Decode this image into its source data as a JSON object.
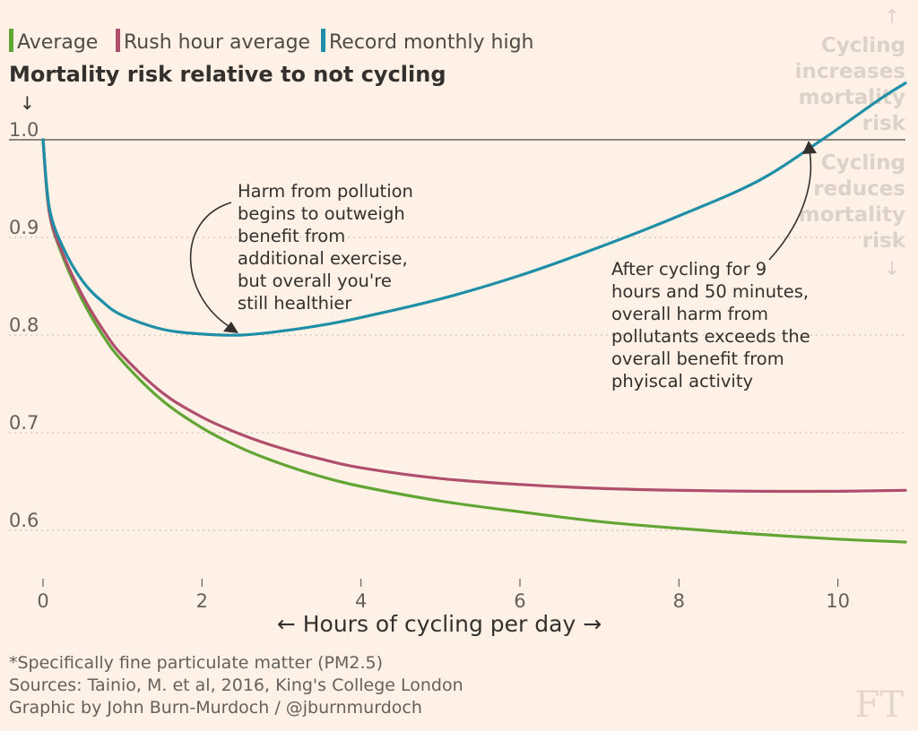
{
  "chart_data": {
    "type": "line",
    "title": "Mortality risk relative to not cycling",
    "title_arrow": "↓",
    "xlabel": "← Hours of cycling per day →",
    "xlim": [
      0,
      10.85
    ],
    "ylim": [
      0.55,
      1.0
    ],
    "y_ticks": [
      1.0,
      0.9,
      0.8,
      0.7,
      0.6
    ],
    "y_tick_labels": [
      "1.0",
      "0.9",
      "0.8",
      "0.7",
      "0.6"
    ],
    "x_ticks": [
      0,
      2,
      4,
      6,
      8,
      10
    ],
    "x_tick_labels": [
      "0",
      "2",
      "4",
      "6",
      "8",
      "10"
    ],
    "grid": true,
    "legend_position": "top-left",
    "reference_line": 1.0,
    "series": [
      {
        "name": "Average",
        "color": "#61a534",
        "x": [
          0,
          0.08,
          0.25,
          0.5,
          0.75,
          1,
          1.5,
          2,
          2.5,
          3,
          3.5,
          4,
          5,
          6,
          7,
          8,
          9,
          10,
          10.85
        ],
        "y": [
          1.0,
          0.925,
          0.88,
          0.835,
          0.8,
          0.773,
          0.733,
          0.705,
          0.684,
          0.668,
          0.655,
          0.645,
          0.63,
          0.619,
          0.609,
          0.602,
          0.596,
          0.591,
          0.588
        ]
      },
      {
        "name": "Rush hour average",
        "color": "#b04e6e",
        "x": [
          0,
          0.08,
          0.25,
          0.5,
          0.75,
          1,
          1.5,
          2,
          2.5,
          3,
          3.5,
          4,
          5,
          6,
          7,
          8,
          9,
          10,
          10.85
        ],
        "y": [
          1.0,
          0.925,
          0.883,
          0.84,
          0.806,
          0.779,
          0.741,
          0.716,
          0.698,
          0.684,
          0.673,
          0.664,
          0.653,
          0.647,
          0.643,
          0.641,
          0.64,
          0.64,
          0.641
        ]
      },
      {
        "name": "Record monthly high",
        "color": "#1e8fa6",
        "x": [
          0,
          0.08,
          0.25,
          0.5,
          0.75,
          1,
          1.5,
          2,
          2.5,
          3,
          3.5,
          4,
          5,
          6,
          7,
          8,
          9,
          9.8,
          10.5,
          10.85
        ],
        "y": [
          1.0,
          0.93,
          0.89,
          0.855,
          0.834,
          0.82,
          0.806,
          0.801,
          0.8,
          0.804,
          0.81,
          0.818,
          0.837,
          0.861,
          0.89,
          0.922,
          0.958,
          1.0,
          1.04,
          1.058
        ]
      }
    ],
    "annotations": [
      {
        "name": "pollution-annotation",
        "lines": [
          "Harm from pollution",
          "begins to outweigh",
          "benefit from",
          "additional exercise,",
          "but overall you're",
          "still healthier"
        ],
        "point": [
          2.45,
          0.8
        ]
      },
      {
        "name": "crossover-annotation",
        "lines": [
          "After cycling for 9",
          "hours and 50 minutes,",
          "overall harm from",
          "pollutants exceeds the",
          "overall benefit from",
          "phyiscal activity"
        ],
        "point": [
          9.8,
          1.0
        ]
      }
    ],
    "regions": {
      "above": {
        "lines": [
          "Cycling",
          "increases",
          "mortality",
          "risk"
        ],
        "arrow": "↑"
      },
      "below": {
        "lines": [
          "Cycling",
          "reduces",
          "mortality",
          "risk"
        ],
        "arrow": "↓"
      }
    }
  },
  "footer": {
    "note": "*Specifically fine particulate matter (PM2.5)",
    "sources": "Sources: Tainio, M. et al, 2016, King's College London",
    "credit": "Graphic by John Burn-Murdoch / @jburnmurdoch"
  },
  "logo": "FT",
  "colors": {
    "background": "#fff1e5",
    "reference_line": "#66605c",
    "gridline": "#cec6b9",
    "annotation_arrow": "#33302e"
  }
}
